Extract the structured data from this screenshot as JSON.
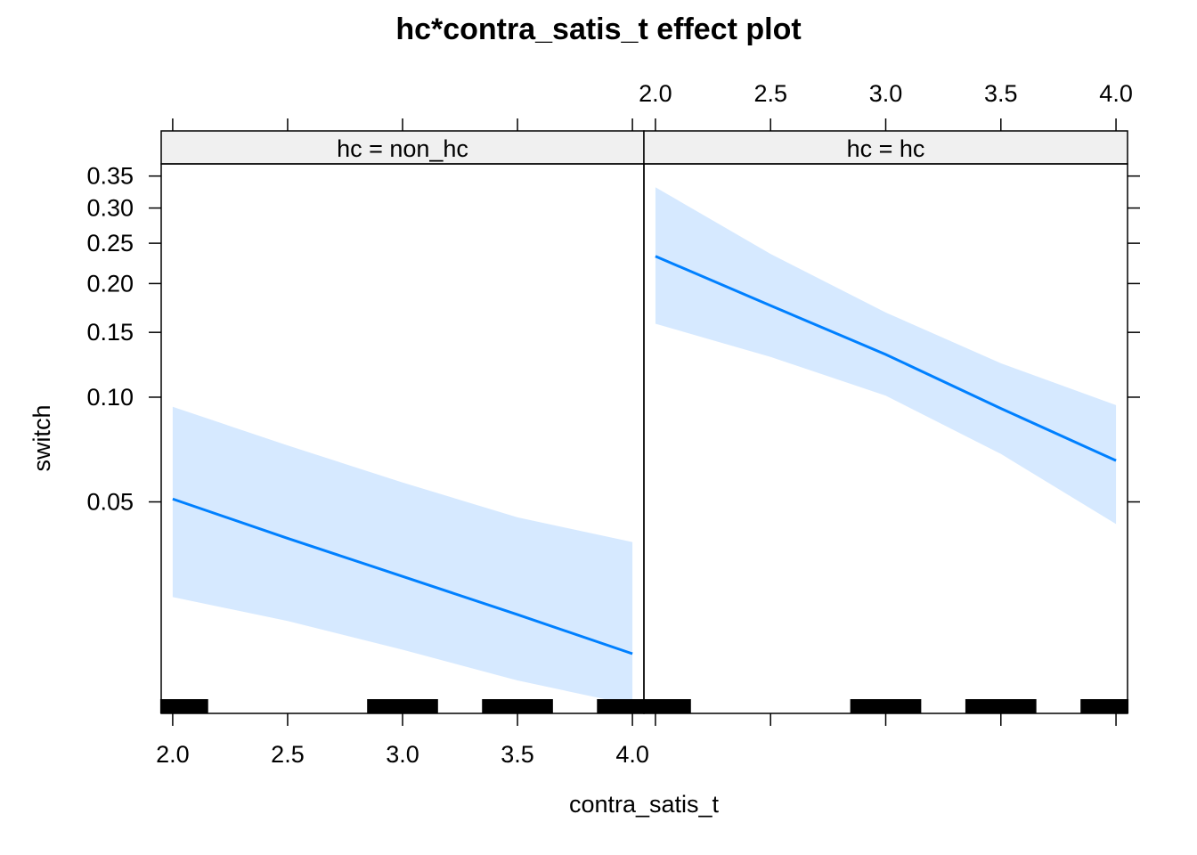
{
  "chart_data": {
    "type": "line",
    "title": "hc*contra_satis_t effect plot",
    "xlabel": "contra_satis_t",
    "ylabel": "switch",
    "x_ticks": [
      "2.0",
      "2.5",
      "3.0",
      "3.5",
      "4.0"
    ],
    "x_tick_values": [
      2.0,
      2.5,
      3.0,
      3.5,
      4.0
    ],
    "y_ticks": [
      "0.35",
      "0.30",
      "0.25",
      "0.20",
      "0.15",
      "0.10",
      "0.05"
    ],
    "y_tick_values": [
      0.35,
      0.3,
      0.25,
      0.2,
      0.15,
      0.1,
      0.05
    ],
    "y_scale": "logit",
    "xlim": [
      1.95,
      4.05
    ],
    "ylim": [
      0.0115,
      0.37
    ],
    "line_color": "#0080FF",
    "band_color": "#D6E9FF",
    "panels": [
      {
        "strip": "hc = non_hc",
        "x": [
          2.0,
          2.5,
          3.0,
          3.5,
          4.0
        ],
        "fit": [
          0.051,
          0.039,
          0.03,
          0.023,
          0.0175
        ],
        "lower": [
          0.026,
          0.022,
          0.018,
          0.0145,
          0.0122
        ],
        "upper": [
          0.094,
          0.073,
          0.057,
          0.045,
          0.038
        ],
        "rug": [
          2.0,
          2.1,
          2.9,
          3.0,
          3.1,
          3.4,
          3.5,
          3.6,
          3.9,
          4.0
        ]
      },
      {
        "strip": "hc = hc",
        "x": [
          2.0,
          2.5,
          3.0,
          3.5,
          4.0
        ],
        "fit": [
          0.233,
          0.176,
          0.131,
          0.093,
          0.066
        ],
        "lower": [
          0.158,
          0.129,
          0.101,
          0.069,
          0.043
        ],
        "upper": [
          0.332,
          0.236,
          0.169,
          0.124,
          0.095
        ],
        "rug": [
          2.0,
          2.1,
          2.9,
          3.0,
          3.1,
          3.4,
          3.5,
          3.6,
          3.9,
          4.0
        ]
      }
    ]
  }
}
